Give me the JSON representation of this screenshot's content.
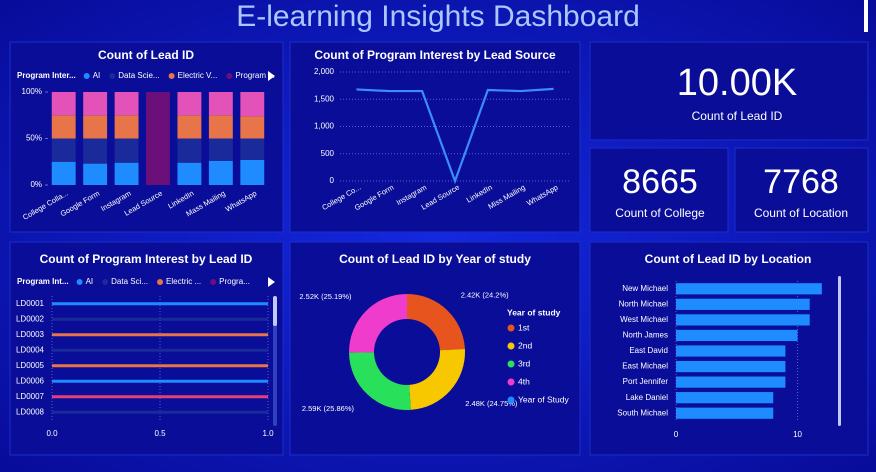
{
  "title": "E-learning Insights Dashboard",
  "cards": [
    {
      "value": "10.00K",
      "label": "Count of Lead ID"
    },
    {
      "value": "8665",
      "label": "Count of College"
    },
    {
      "value": "7768",
      "label": "Count of Location"
    }
  ],
  "chart_data": [
    {
      "type": "bar",
      "stacked": true,
      "title": "Count of Lead ID",
      "legend_title": "Program Inter...",
      "categories": [
        "College Colla...",
        "Google Form",
        "Instagram",
        "Lead Source",
        "LinkedIn",
        "Mass Mailing",
        "WhatsApp"
      ],
      "series": [
        {
          "name": "AI",
          "color": "#1e8cff",
          "values": [
            25,
            23,
            24,
            0,
            24,
            26,
            27
          ]
        },
        {
          "name": "Data Scie...",
          "color": "#1b2a9a",
          "values": [
            25,
            27,
            26,
            0,
            26,
            24,
            23
          ]
        },
        {
          "name": "Electric V...",
          "color": "#e8744a",
          "values": [
            25,
            25,
            25,
            0,
            25,
            25,
            24
          ]
        },
        {
          "name": "Program ...",
          "color": "#6b0f7a",
          "values": [
            0,
            0,
            0,
            100,
            0,
            0,
            0
          ]
        },
        {
          "color": "#e352b8",
          "values": [
            25,
            25,
            25,
            0,
            25,
            25,
            26
          ]
        }
      ],
      "ylim": [
        0,
        100
      ],
      "yticks": [
        {
          "value": 0,
          "label": "0%"
        },
        {
          "value": 50,
          "label": "50%"
        },
        {
          "value": 100,
          "label": "100%"
        }
      ]
    },
    {
      "type": "line",
      "title": "Count of Program Interest by Lead Source",
      "color": "#3b8cff",
      "categories": [
        "College Co...",
        "Google Form",
        "Instagram",
        "Lead Source",
        "LinkedIn",
        "Miss Mailing",
        "WhatsApp"
      ],
      "values": [
        1680,
        1650,
        1650,
        0,
        1670,
        1650,
        1690
      ],
      "ylim": [
        0,
        2000
      ],
      "yticks": [
        0,
        500,
        {
          "value": 1000,
          "label": "1,000"
        },
        {
          "value": 1500,
          "label": "1,500"
        },
        {
          "value": 2000,
          "label": "2,000"
        }
      ],
      "grid": true
    },
    {
      "type": "barh",
      "stacked": true,
      "title": "Count of Program Interest by Lead ID",
      "legend_title": "Program Int...",
      "categories": [
        "LD0001",
        "LD0002",
        "LD0003",
        "LD0004",
        "LD0005",
        "LD0006",
        "LD0007",
        "LD0008"
      ],
      "series": [
        {
          "name": "AI",
          "color": "#1e8cff",
          "values": [
            1,
            0,
            0,
            0,
            0,
            1,
            0,
            0
          ]
        },
        {
          "name": "Data Sci...",
          "color": "#1b2a9a",
          "values": [
            0,
            1,
            0,
            1,
            0,
            0,
            0,
            1
          ]
        },
        {
          "name": "Electric ...",
          "color": "#e8744a",
          "values": [
            0,
            0,
            1,
            0,
            1,
            0,
            0,
            0
          ]
        },
        {
          "name": "Progra...",
          "color": "#6b0f7a",
          "values": [
            0,
            0,
            0,
            0,
            0,
            0,
            0,
            0
          ]
        },
        {
          "color": "#e3407a",
          "values": [
            0,
            0,
            0,
            0,
            0,
            0,
            1,
            0
          ]
        }
      ],
      "xlim": [
        0,
        1
      ],
      "xticks": [
        {
          "value": 0,
          "label": "0.0"
        },
        0.5,
        {
          "value": 1,
          "label": "1.0"
        }
      ],
      "grid": true
    },
    {
      "type": "donut",
      "title": "Count of Lead ID by Year of study",
      "legend_title": "Year of study",
      "categories": [
        "1st",
        "2nd",
        "3rd",
        "4th",
        "Year of Study"
      ],
      "values": [
        2420,
        2480,
        2590,
        2520,
        null
      ],
      "value_labels": [
        "2.42K (24.2%)",
        "2.48K (24.75%)",
        "2.59K (25.86%)",
        "2.52K (25.19%)",
        null
      ],
      "colors": [
        "#e8541e",
        "#f7c800",
        "#28e05a",
        "#f03ccd",
        "#1e8cff"
      ]
    },
    {
      "type": "barh",
      "title": "Count of Lead ID by Location",
      "color": "#1e8cff",
      "categories": [
        "New Michael",
        "North Michael",
        "West Michael",
        "North James",
        "East David",
        "East Michael",
        "Port Jennifer",
        "Lake Daniel",
        "South Michael"
      ],
      "values": [
        12,
        11,
        11,
        10,
        9,
        9,
        9,
        8,
        8
      ],
      "xlim": [
        0,
        13
      ],
      "xticks": [
        0,
        10
      ],
      "grid": true
    }
  ]
}
